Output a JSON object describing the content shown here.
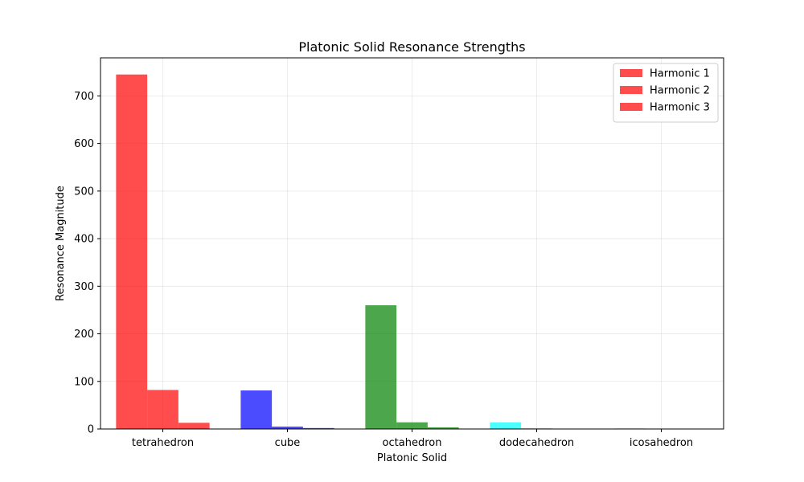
{
  "chart_data": {
    "type": "bar",
    "title": "Platonic Solid Resonance Strengths",
    "xlabel": "Platonic Solid",
    "ylabel": "Resonance Magnitude",
    "categories": [
      "tetrahedron",
      "cube",
      "octahedron",
      "dodecahedron",
      "icosahedron"
    ],
    "category_colors": [
      "#ff0000",
      "#0000ff",
      "#008000",
      "#00ffff",
      "#ff00ff"
    ],
    "bar_opacity": 0.7,
    "ylim": [
      0,
      780
    ],
    "yticks": [
      0,
      100,
      200,
      300,
      400,
      500,
      600,
      700
    ],
    "grid": true,
    "legend_position": "upper right",
    "series": [
      {
        "name": "Harmonic 1",
        "values": [
          745,
          81,
          260,
          14,
          1
        ]
      },
      {
        "name": "Harmonic 2",
        "values": [
          82,
          5,
          14,
          1.5,
          0.3
        ]
      },
      {
        "name": "Harmonic 3",
        "values": [
          13,
          2,
          3.5,
          0.2,
          0.05
        ]
      }
    ]
  }
}
